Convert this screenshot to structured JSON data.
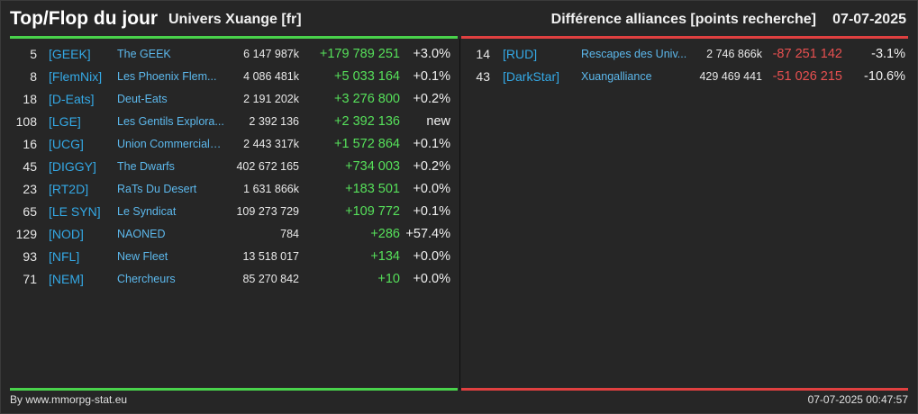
{
  "header": {
    "title": "Top/Flop du jour",
    "universe": "Univers Xuange [fr]",
    "category": "Différence alliances [points recherche]",
    "date": "07-07-2025"
  },
  "colors": {
    "top_bar": "#49d24b",
    "flop_bar": "#e04040",
    "tag": "#34a9e6",
    "gain": "#56e05a",
    "loss": "#e85050"
  },
  "top": [
    {
      "rank": "5",
      "tag": "[GEEK]",
      "name": "The GEEK",
      "points": "6 147 987k",
      "diff": "+179 789 251",
      "pct": "+3.0%"
    },
    {
      "rank": "8",
      "tag": "[FlemNix]",
      "name": "Les Phoenix Flem...",
      "points": "4 086 481k",
      "diff": "+5 033 164",
      "pct": "+0.1%"
    },
    {
      "rank": "18",
      "tag": "[D-Eats]",
      "name": "Deut-Eats",
      "points": "2 191 202k",
      "diff": "+3 276 800",
      "pct": "+0.2%"
    },
    {
      "rank": "108",
      "tag": "[LGE]",
      "name": "Les Gentils Explora...",
      "points": "2 392 136",
      "diff": "+2 392 136",
      "pct": "new"
    },
    {
      "rank": "16",
      "tag": "[UCG]",
      "name": "Union Commerciale...",
      "points": "2 443 317k",
      "diff": "+1 572 864",
      "pct": "+0.1%"
    },
    {
      "rank": "45",
      "tag": "[DIGGY]",
      "name": "The Dwarfs",
      "points": "402 672 165",
      "diff": "+734 003",
      "pct": "+0.2%"
    },
    {
      "rank": "23",
      "tag": "[RT2D]",
      "name": "RaTs Du Desert",
      "points": "1 631 866k",
      "diff": "+183 501",
      "pct": "+0.0%"
    },
    {
      "rank": "65",
      "tag": "[LE SYN]",
      "name": "Le Syndicat",
      "points": "109 273 729",
      "diff": "+109 772",
      "pct": "+0.1%"
    },
    {
      "rank": "129",
      "tag": "[NOD]",
      "name": "NAONED",
      "points": "784",
      "diff": "+286",
      "pct": "+57.4%"
    },
    {
      "rank": "93",
      "tag": "[NFL]",
      "name": "New Fleet",
      "points": "13 518 017",
      "diff": "+134",
      "pct": "+0.0%"
    },
    {
      "rank": "71",
      "tag": "[NEM]",
      "name": "Chercheurs",
      "points": "85 270 842",
      "diff": "+10",
      "pct": "+0.0%"
    }
  ],
  "flop": [
    {
      "rank": "14",
      "tag": "[RUD]",
      "name": "Rescapes des Univ...",
      "points": "2 746 866k",
      "diff": "-87 251 142",
      "pct": "-3.1%"
    },
    {
      "rank": "43",
      "tag": "[DarkStar]",
      "name": "Xuangalliance",
      "points": "429 469 441",
      "diff": "-51 026 215",
      "pct": "-10.6%"
    }
  ],
  "footer": {
    "credit": "By www.mmorpg-stat.eu",
    "timestamp": "07-07-2025 00:47:57"
  }
}
